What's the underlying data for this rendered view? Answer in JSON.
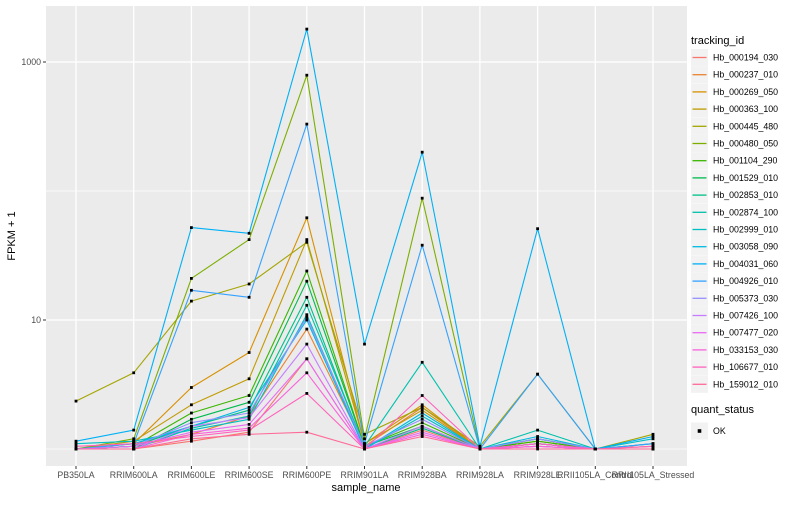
{
  "chart_data": {
    "type": "line",
    "title": "",
    "xlabel": "sample_name",
    "ylabel": "FPKM + 1",
    "x_categories": [
      "PB350LA",
      "RRIM600LA",
      "RRIM600LE",
      "RRIM600SE",
      "RRIM600PE",
      "RRIM901LA",
      "RRIM928BA",
      "RRIM928LA",
      "RRIM928LE",
      "RRII105LA_Control",
      "RRII105LA_Stressed"
    ],
    "y_scale": "log10",
    "y_major_ticks": [
      10,
      1000
    ],
    "y_minor_ticks": [
      1,
      100
    ],
    "ylim": [
      0.74,
      2700
    ],
    "grid": true,
    "legend_position": "right",
    "legend_title": "tracking_id",
    "point_shape": "square",
    "point_color": "#000000",
    "series": [
      {
        "name": "Hb_000194_030",
        "color": "#F8766D",
        "values": [
          1,
          1,
          1.15,
          1.35,
          5,
          1,
          1.4,
          1,
          1.05,
          1,
          1
        ]
      },
      {
        "name": "Hb_000237_010",
        "color": "#EA8331",
        "values": [
          1,
          1.05,
          1.3,
          1.8,
          8.5,
          1.05,
          2.1,
          1,
          1.1,
          1,
          1.05
        ]
      },
      {
        "name": "Hb_000269_050",
        "color": "#D89000",
        "values": [
          1,
          1.1,
          3.0,
          5.6,
          62,
          1.1,
          2.2,
          1,
          1.2,
          1,
          1
        ]
      },
      {
        "name": "Hb_000363_100",
        "color": "#C09B00",
        "values": [
          1,
          1.15,
          2.2,
          3.5,
          42,
          1.1,
          2.0,
          1,
          1.15,
          1,
          1.1
        ]
      },
      {
        "name": "Hb_000445_480",
        "color": "#A3A500",
        "values": [
          2.35,
          3.9,
          14,
          19,
          40,
          1.3,
          2.1,
          1.05,
          3.8,
          1,
          1.3
        ]
      },
      {
        "name": "Hb_000480_050",
        "color": "#7CAE00",
        "values": [
          1,
          1.2,
          21,
          42,
          790,
          1.2,
          88,
          1,
          1.2,
          1,
          1
        ]
      },
      {
        "name": "Hb_001104_290",
        "color": "#39B600",
        "values": [
          1,
          1.05,
          1.9,
          2.6,
          24,
          1.05,
          1.6,
          1,
          1.15,
          1,
          1
        ]
      },
      {
        "name": "Hb_001529_010",
        "color": "#00BB4E",
        "values": [
          1,
          1,
          1.7,
          2.3,
          20,
          1.05,
          1.5,
          1,
          1.1,
          1,
          1
        ]
      },
      {
        "name": "Hb_002853_010",
        "color": "#00C087",
        "values": [
          1,
          1.05,
          1.5,
          2.0,
          15,
          1,
          1.45,
          1,
          1.1,
          1,
          1
        ]
      },
      {
        "name": "Hb_002874_100",
        "color": "#00C1AB",
        "values": [
          1,
          1,
          1.45,
          1.8,
          13,
          1.05,
          4.7,
          1,
          1.4,
          1,
          1
        ]
      },
      {
        "name": "Hb_002999_010",
        "color": "#00BFC4",
        "values": [
          1.1,
          1.15,
          1.4,
          1.7,
          11,
          1,
          1.8,
          1,
          1.2,
          1,
          1.2
        ]
      },
      {
        "name": "Hb_003058_090",
        "color": "#00BAE0",
        "values": [
          1,
          1.1,
          1.5,
          2.1,
          10,
          1,
          1.9,
          1,
          1.25,
          1,
          1.1
        ]
      },
      {
        "name": "Hb_004031_060",
        "color": "#00B0F6",
        "values": [
          1.15,
          1.4,
          52,
          47,
          1800,
          6.5,
          200,
          1.05,
          51,
          1,
          1.25
        ]
      },
      {
        "name": "Hb_004926_010",
        "color": "#35A2FF",
        "values": [
          1,
          1.1,
          17,
          15,
          330,
          1.1,
          38,
          1,
          3.8,
          1,
          1.1
        ]
      },
      {
        "name": "Hb_005373_030",
        "color": "#9590FF",
        "values": [
          1,
          1.05,
          1.6,
          1.9,
          10.5,
          1.05,
          1.7,
          1,
          1.2,
          1,
          1
        ]
      },
      {
        "name": "Hb_007426_100",
        "color": "#C77CFF",
        "values": [
          1,
          1,
          1.5,
          1.75,
          6.5,
          1,
          1.5,
          1,
          1.1,
          1,
          1
        ]
      },
      {
        "name": "Hb_007477_020",
        "color": "#E76BF3",
        "values": [
          1,
          1.05,
          1.35,
          1.55,
          5,
          1,
          1.35,
          1,
          1.05,
          1,
          1
        ]
      },
      {
        "name": "Hb_033153_030",
        "color": "#FA62DB",
        "values": [
          1,
          1,
          1.3,
          1.45,
          3.9,
          1,
          1.3,
          1,
          1.05,
          1,
          1
        ]
      },
      {
        "name": "Hb_106677_010",
        "color": "#FF62BC",
        "values": [
          1.05,
          1.1,
          1.25,
          1.4,
          2.7,
          1,
          2.6,
          1,
          1.1,
          1,
          1.05
        ]
      },
      {
        "name": "Hb_159012_010",
        "color": "#FF6A98",
        "values": [
          1,
          1,
          1.2,
          1.3,
          1.35,
          1,
          1.25,
          1,
          1,
          1,
          1
        ]
      }
    ],
    "legend2_title": "quant_status",
    "legend2_items": [
      "OK"
    ]
  },
  "style_colors": {
    "panel_bg": "#EBEBEB",
    "grid_line": "#FFFFFF",
    "tick_mark": "#333333",
    "tick_text": "#4D4D4D",
    "legend_key_bg": "#F2F2F2",
    "page_bg": "#FFFFFF"
  }
}
